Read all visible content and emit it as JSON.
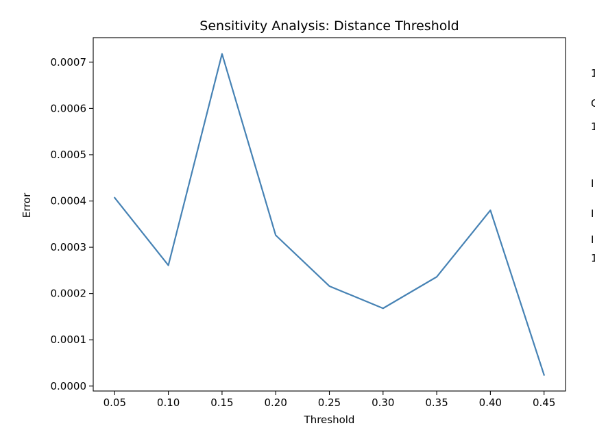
{
  "chart_data": {
    "type": "line",
    "title": "Sensitivity Analysis: Distance Threshold",
    "xlabel": "Threshold",
    "ylabel": "Error",
    "x": [
      0.05,
      0.1,
      0.15,
      0.2,
      0.25,
      0.3,
      0.35,
      0.4,
      0.45
    ],
    "series": [
      {
        "values": [
          0.000407,
          0.000261,
          0.000718,
          0.000326,
          0.000216,
          0.000168,
          0.000236,
          0.00038,
          2.4e-05
        ],
        "color": "#4682b4"
      }
    ],
    "xticks": [
      0.05,
      0.1,
      0.15,
      0.2,
      0.25,
      0.3,
      0.35,
      0.4,
      0.45
    ],
    "xtick_labels": [
      "0.05",
      "0.10",
      "0.15",
      "0.20",
      "0.25",
      "0.30",
      "0.35",
      "0.40",
      "0.45"
    ],
    "yticks": [
      0.0,
      0.0001,
      0.0002,
      0.0003,
      0.0004,
      0.0005,
      0.0006,
      0.0007
    ],
    "ytick_labels": [
      "0.0000",
      "0.0001",
      "0.0002",
      "0.0003",
      "0.0004",
      "0.0005",
      "0.0006",
      "0.0007"
    ],
    "xlim": [
      0.03,
      0.47
    ],
    "ylim": [
      -1.07e-05,
      0.000753
    ],
    "grid": false,
    "legend": "none"
  },
  "edge_glyphs": [
    "1",
    "C",
    "1",
    "I",
    "I",
    "I",
    "1"
  ]
}
